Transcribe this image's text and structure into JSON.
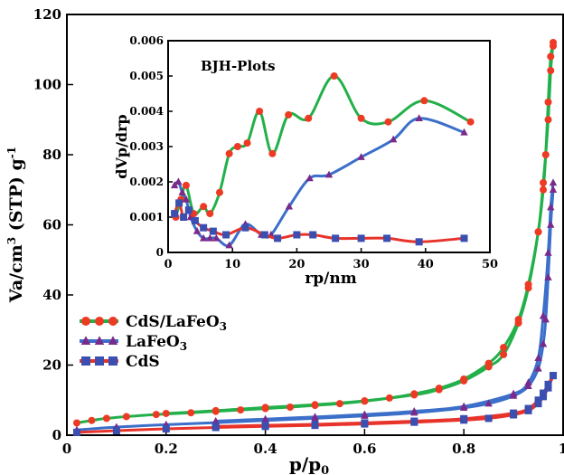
{
  "chart_data": [
    {
      "type": "scatter",
      "xlabel": "p/p",
      "xlabel_sub": "0",
      "ylabel": "Va/cm",
      "ylabel_sup": "3",
      "ylabel_rest": " (STP) g",
      "ylabel_sup2": "-1",
      "xlim": [
        0,
        1.0
      ],
      "ylim": [
        0,
        120
      ],
      "xticks": [
        "0",
        "0.2",
        "0.4",
        "0.6",
        "0.8",
        "1"
      ],
      "yticks": [
        "0",
        "20",
        "40",
        "60",
        "80",
        "100",
        "120"
      ],
      "legend_position": "bottom-left",
      "series": [
        {
          "name": "CdS/LaFeO",
          "name_sub": "3",
          "color": "#22b04a",
          "marker": "circle",
          "marker_color": "#ee3a24",
          "adsorption": [
            [
              0.02,
              3.5
            ],
            [
              0.05,
              4.2
            ],
            [
              0.08,
              4.8
            ],
            [
              0.12,
              5.3
            ],
            [
              0.18,
              5.9
            ],
            [
              0.25,
              6.4
            ],
            [
              0.3,
              6.8
            ],
            [
              0.35,
              7.2
            ],
            [
              0.4,
              7.6
            ],
            [
              0.45,
              8
            ],
            [
              0.5,
              8.5
            ],
            [
              0.55,
              9
            ],
            [
              0.6,
              9.7
            ],
            [
              0.65,
              10.6
            ],
            [
              0.7,
              11.8
            ],
            [
              0.75,
              13.4
            ],
            [
              0.8,
              16
            ],
            [
              0.85,
              20.5
            ],
            [
              0.88,
              25
            ],
            [
              0.91,
              33
            ],
            [
              0.93,
              43
            ],
            [
              0.95,
              58
            ],
            [
              0.96,
              70
            ],
            [
              0.965,
              80
            ],
            [
              0.97,
              95
            ],
            [
              0.975,
              108
            ],
            [
              0.98,
              111
            ]
          ],
          "desorption": [
            [
              0.98,
              112
            ],
            [
              0.975,
              104
            ],
            [
              0.97,
              90
            ],
            [
              0.96,
              72
            ],
            [
              0.95,
              58
            ],
            [
              0.93,
              42
            ],
            [
              0.91,
              32
            ],
            [
              0.88,
              23
            ],
            [
              0.85,
              19.5
            ],
            [
              0.8,
              15.5
            ],
            [
              0.75,
              13
            ],
            [
              0.7,
              11.5
            ],
            [
              0.6,
              9.8
            ],
            [
              0.5,
              8.7
            ],
            [
              0.4,
              7.9
            ],
            [
              0.3,
              7
            ],
            [
              0.2,
              6.2
            ]
          ]
        },
        {
          "name": "LaFeO",
          "name_sub": "3",
          "color": "#3b6fc9",
          "marker": "triangle",
          "marker_color": "#7a2a8a",
          "adsorption": [
            [
              0.02,
              1.5
            ],
            [
              0.1,
              2.3
            ],
            [
              0.2,
              3
            ],
            [
              0.3,
              3.6
            ],
            [
              0.4,
              4.2
            ],
            [
              0.5,
              4.8
            ],
            [
              0.6,
              5.5
            ],
            [
              0.7,
              6.4
            ],
            [
              0.8,
              7.8
            ],
            [
              0.85,
              9
            ],
            [
              0.9,
              11.2
            ],
            [
              0.93,
              14
            ],
            [
              0.95,
              19
            ],
            [
              0.96,
              26
            ],
            [
              0.965,
              33
            ],
            [
              0.97,
              45
            ],
            [
              0.975,
              60
            ],
            [
              0.98,
              70
            ]
          ],
          "desorption": [
            [
              0.98,
              72
            ],
            [
              0.975,
              65
            ],
            [
              0.97,
              52
            ],
            [
              0.96,
              34
            ],
            [
              0.95,
              22
            ],
            [
              0.93,
              15
            ],
            [
              0.9,
              11.8
            ],
            [
              0.8,
              8.2
            ],
            [
              0.7,
              6.8
            ],
            [
              0.6,
              5.9
            ],
            [
              0.5,
              5.2
            ],
            [
              0.4,
              4.6
            ],
            [
              0.3,
              4
            ]
          ]
        },
        {
          "name": "CdS",
          "name_sub": "",
          "color": "#e8332a",
          "marker": "square",
          "marker_color": "#3b4fb0",
          "adsorption": [
            [
              0.02,
              0.8
            ],
            [
              0.1,
              1.3
            ],
            [
              0.2,
              1.8
            ],
            [
              0.3,
              2.2
            ],
            [
              0.4,
              2.5
            ],
            [
              0.5,
              2.8
            ],
            [
              0.6,
              3.2
            ],
            [
              0.7,
              3.7
            ],
            [
              0.8,
              4.3
            ],
            [
              0.85,
              4.8
            ],
            [
              0.9,
              5.8
            ],
            [
              0.93,
              7
            ],
            [
              0.95,
              9
            ],
            [
              0.96,
              11
            ],
            [
              0.97,
              13.5
            ],
            [
              0.98,
              17
            ]
          ],
          "desorption": [
            [
              0.98,
              17
            ],
            [
              0.97,
              14.5
            ],
            [
              0.96,
              12
            ],
            [
              0.95,
              10
            ],
            [
              0.93,
              7.6
            ],
            [
              0.9,
              6.3
            ],
            [
              0.8,
              4.7
            ],
            [
              0.7,
              4
            ],
            [
              0.6,
              3.5
            ],
            [
              0.5,
              3.1
            ],
            [
              0.4,
              2.8
            ],
            [
              0.3,
              2.5
            ]
          ]
        }
      ]
    },
    {
      "type": "line",
      "title": "BJH-Plots",
      "xlabel": "rp/nm",
      "ylabel": "dVp/drp",
      "xlim": [
        0,
        50
      ],
      "ylim": [
        0,
        0.006
      ],
      "xticks": [
        "0",
        "10",
        "20",
        "30",
        "40",
        "50"
      ],
      "yticks": [
        "0",
        "0.001",
        "0.002",
        "0.003",
        "0.004",
        "0.005",
        "0.006"
      ],
      "series": [
        {
          "name": "CdS/LaFeO3",
          "color": "#22b04a",
          "marker": "circle",
          "marker_color": "#ee3a24",
          "x": [
            1.2,
            2,
            2.8,
            4,
            5.5,
            6.5,
            8,
            9.5,
            10.8,
            12.3,
            14.2,
            16.2,
            18.7,
            21.8,
            25.8,
            30,
            34.2,
            39.8,
            47
          ],
          "y": [
            0.001,
            0.0015,
            0.0019,
            0.0011,
            0.0013,
            0.0011,
            0.0017,
            0.0028,
            0.003,
            0.0031,
            0.004,
            0.0028,
            0.0039,
            0.0038,
            0.005,
            0.0038,
            0.0037,
            0.0043,
            0.0037
          ]
        },
        {
          "name": "LaFeO3",
          "color": "#3b6fc9",
          "marker": "triangle",
          "marker_color": "#7a2a8a",
          "x": [
            1,
            1.6,
            2.2,
            2.8,
            3.5,
            4.5,
            5.5,
            6.5,
            7.5,
            9.5,
            12,
            14.5,
            16,
            18.8,
            22,
            25,
            30,
            35,
            39,
            46
          ],
          "y": [
            0.0019,
            0.002,
            0.0017,
            0.0015,
            0.001,
            0.0006,
            0.0004,
            0.0004,
            0.0004,
            0.0002,
            0.0008,
            0.0005,
            0.0005,
            0.0013,
            0.0021,
            0.0022,
            0.0027,
            0.0032,
            0.0038,
            0.0034
          ]
        },
        {
          "name": "CdS",
          "color": "#e8332a",
          "marker": "square",
          "marker_color": "#3b4fb0",
          "x": [
            1,
            1.7,
            2.4,
            3.2,
            4.2,
            5.5,
            7,
            9,
            12,
            15,
            17,
            20,
            22.5,
            26,
            30,
            34,
            39,
            46
          ],
          "y": [
            0.0011,
            0.0014,
            0.001,
            0.0012,
            0.0009,
            0.0007,
            0.0006,
            0.0005,
            0.0007,
            0.0005,
            0.0004,
            0.0005,
            0.0005,
            0.0004,
            0.0004,
            0.0004,
            0.0003,
            0.0004
          ]
        }
      ]
    }
  ]
}
